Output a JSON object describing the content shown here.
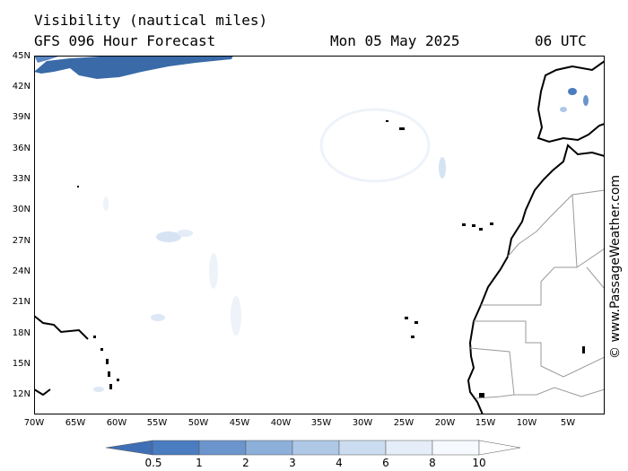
{
  "header": {
    "title": "Visibility (nautical miles)",
    "subtitle": "GFS 096 Hour Forecast",
    "date": "Mon 05 May 2025",
    "time": "06 UTC"
  },
  "credit": "© www.PassageWeather.com",
  "axes": {
    "lat_labels": [
      "45N",
      "42N",
      "39N",
      "36N",
      "33N",
      "30N",
      "27N",
      "24N",
      "21N",
      "18N",
      "15N",
      "12N"
    ],
    "lon_labels": [
      "70W",
      "65W",
      "60W",
      "55W",
      "50W",
      "45W",
      "40W",
      "35W",
      "30W",
      "25W",
      "20W",
      "15W",
      "10W",
      "5W"
    ]
  },
  "legend": {
    "labels": [
      "0.5",
      "1",
      "2",
      "3",
      "4",
      "6",
      "8",
      "10"
    ],
    "colors": [
      "#3f6fb5",
      "#4a7cc0",
      "#6b95cc",
      "#8cb0da",
      "#aec8e6",
      "#cbdcf0",
      "#e4edf8",
      "#f6f9fd"
    ]
  },
  "colors": {
    "fog_dense": "#3a6aa8",
    "fog_light": "#d6e3f3",
    "coast": "#000000",
    "border": "#9a9a9a"
  }
}
